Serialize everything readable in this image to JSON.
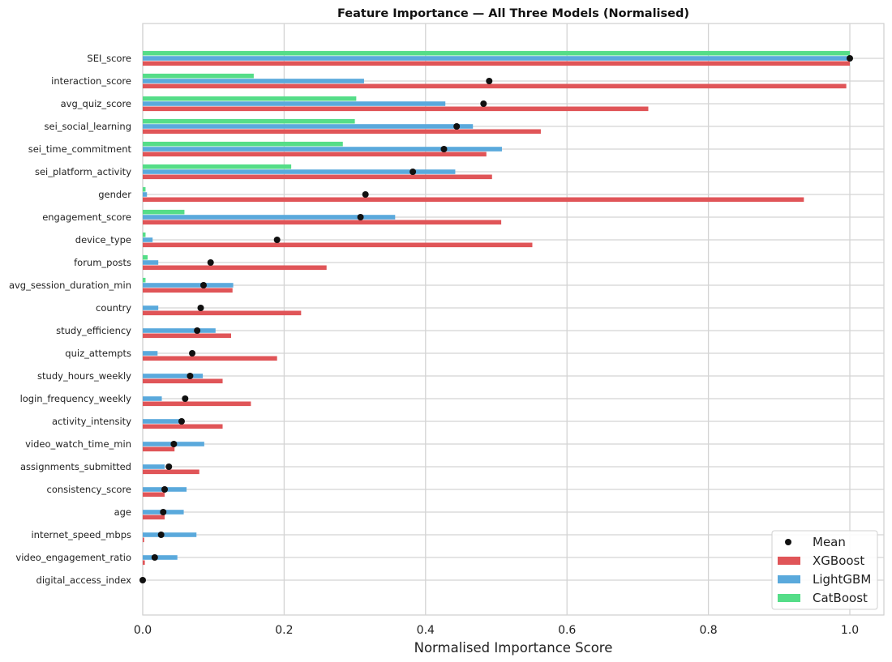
{
  "chart_data": {
    "type": "bar",
    "orientation": "horizontal",
    "title": "Feature Importance — All Three Models (Normalised)",
    "xlabel": "Normalised Importance Score",
    "ylabel": "",
    "xlim": [
      0,
      1.05
    ],
    "xticks": [
      "0.0",
      "0.2",
      "0.4",
      "0.6",
      "0.8",
      "1.0"
    ],
    "grid": true,
    "legend_position": "bottom-right",
    "categories": [
      "SEI_score",
      "interaction_score",
      "avg_quiz_score",
      "sei_social_learning",
      "sei_time_commitment",
      "sei_platform_activity",
      "gender",
      "engagement_score",
      "device_type",
      "forum_posts",
      "avg_session_duration_min",
      "country",
      "study_efficiency",
      "quiz_attempts",
      "study_hours_weekly",
      "login_frequency_weekly",
      "activity_intensity",
      "video_watch_time_min",
      "assignments_submitted",
      "consistency_score",
      "age",
      "internet_speed_mbps",
      "video_engagement_ratio",
      "digital_access_index"
    ],
    "series": [
      {
        "name": "CatBoost",
        "color": "#55dd88",
        "values": [
          1.0,
          0.157,
          0.302,
          0.3,
          0.283,
          0.21,
          0.004,
          0.059,
          0.004,
          0.007,
          0.004,
          0,
          0,
          0,
          0,
          0,
          0,
          0,
          0,
          0,
          0,
          0,
          0,
          0
        ]
      },
      {
        "name": "LightGBM",
        "color": "#5aa9dc",
        "values": [
          1.0,
          0.313,
          0.428,
          0.467,
          0.508,
          0.442,
          0.006,
          0.357,
          0.014,
          0.022,
          0.128,
          0.022,
          0.103,
          0.021,
          0.085,
          0.027,
          0.053,
          0.087,
          0.031,
          0.062,
          0.058,
          0.076,
          0.049,
          0
        ]
      },
      {
        "name": "XGBoost",
        "color": "#e05558",
        "values": [
          1.0,
          0.995,
          0.715,
          0.563,
          0.486,
          0.494,
          0.935,
          0.507,
          0.551,
          0.26,
          0.127,
          0.224,
          0.125,
          0.19,
          0.113,
          0.153,
          0.113,
          0.045,
          0.08,
          0.031,
          0.031,
          0.002,
          0.003,
          0
        ]
      }
    ],
    "mean": {
      "name": "Mean",
      "color": "#111111",
      "values": [
        1.0,
        0.49,
        0.482,
        0.444,
        0.426,
        0.382,
        0.315,
        0.308,
        0.19,
        0.096,
        0.086,
        0.082,
        0.077,
        0.07,
        0.067,
        0.06,
        0.055,
        0.044,
        0.037,
        0.031,
        0.029,
        0.026,
        0.017,
        0.0
      ]
    },
    "legend": [
      "Mean",
      "XGBoost",
      "LightGBM",
      "CatBoost"
    ]
  }
}
